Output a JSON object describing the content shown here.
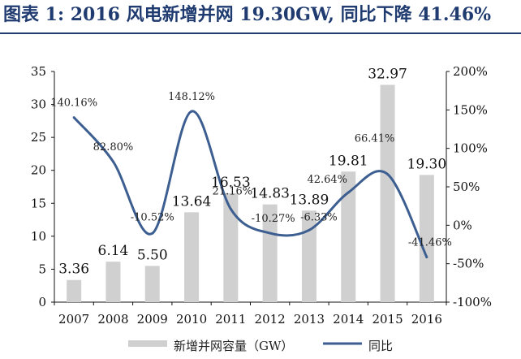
{
  "title": "图表 1: 2016 风电新增并网 19.30GW, 同比下降 41.46%",
  "chart_data": {
    "type": "bar",
    "categories": [
      "2007",
      "2008",
      "2009",
      "2010",
      "2011",
      "2012",
      "2013",
      "2014",
      "2015",
      "2016"
    ],
    "series": [
      {
        "name": "新增并网容量（GW）",
        "type": "bar",
        "axis": "left",
        "color": "#d0d0d0",
        "values": [
          3.36,
          6.14,
          5.5,
          13.64,
          16.53,
          14.83,
          13.89,
          19.81,
          32.97,
          19.3
        ],
        "labels": [
          "3.36",
          "6.14",
          "5.50",
          "13.64",
          "16.53",
          "14.83",
          "13.89",
          "19.81",
          "32.97",
          "19.30"
        ]
      },
      {
        "name": "同比",
        "type": "line",
        "axis": "right",
        "color": "#3c5e90",
        "values": [
          140.16,
          82.8,
          -10.52,
          148.12,
          21.16,
          -10.27,
          -6.33,
          42.64,
          66.41,
          -41.46
        ],
        "labels": [
          "140.16%",
          "82.80%",
          "-10.52%",
          "148.12%",
          "21.16%",
          "-10.27%",
          "-6.33%",
          "42.64%",
          "66.41%",
          "-41.46%"
        ]
      }
    ],
    "left_axis": {
      "min": 0,
      "max": 35,
      "ticks": [
        "0",
        "5",
        "10",
        "15",
        "20",
        "25",
        "30",
        "35"
      ]
    },
    "right_axis": {
      "min": -100,
      "max": 200,
      "ticks": [
        "-100%",
        "-50%",
        "0%",
        "50%",
        "100%",
        "150%",
        "200%"
      ]
    },
    "legend_position": "bottom",
    "grid": false
  }
}
